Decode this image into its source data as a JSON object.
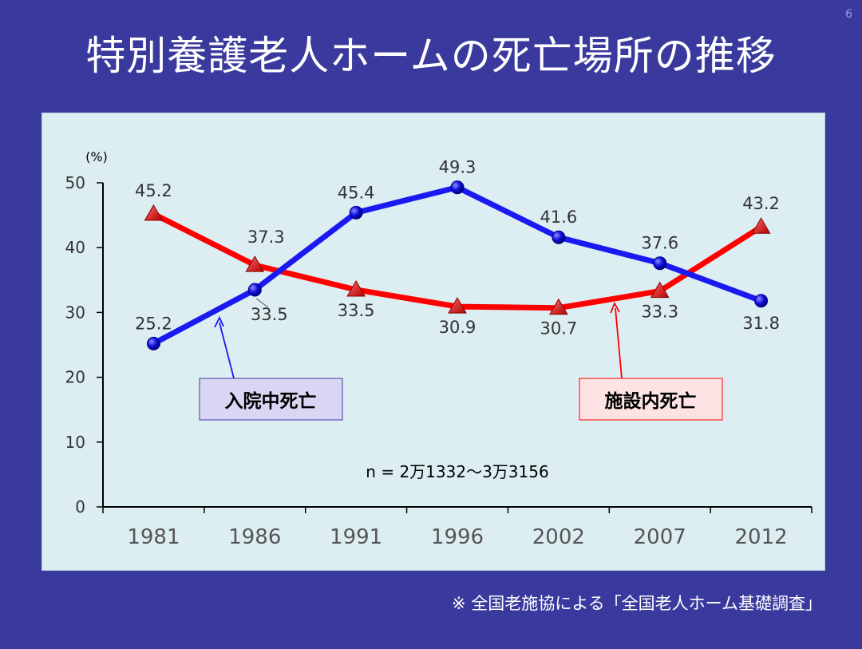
{
  "page": {
    "page_number": "6",
    "title": "特別養護老人ホームの死亡場所の推移",
    "footnote": "※ 全国老施協による「全国老人ホーム基礎調査」"
  },
  "chart_data": {
    "type": "line",
    "categories": [
      "1981",
      "1986",
      "1991",
      "1996",
      "2002",
      "2007",
      "2012"
    ],
    "y_unit": "(%)",
    "ylim": [
      0,
      50
    ],
    "yticks": [
      "0",
      "10",
      "20",
      "30",
      "40",
      "50"
    ],
    "grid": false,
    "annotation": "n = 2万1332〜3万3156",
    "series": [
      {
        "name": "入院中死亡",
        "color": "#1a1af0",
        "marker": "circle",
        "values": [
          25.2,
          33.5,
          45.4,
          49.3,
          41.6,
          37.6,
          31.8
        ],
        "labels": [
          "25.2",
          "33.5",
          "45.4",
          "49.3",
          "41.6",
          "37.6",
          "31.8"
        ]
      },
      {
        "name": "施設内死亡",
        "color": "#ff0000",
        "marker": "triangle",
        "values": [
          45.2,
          37.3,
          33.5,
          30.9,
          30.7,
          33.3,
          43.2
        ],
        "labels": [
          "45.2",
          "37.3",
          "33.5",
          "30.9",
          "30.7",
          "33.3",
          "43.2"
        ]
      }
    ]
  }
}
